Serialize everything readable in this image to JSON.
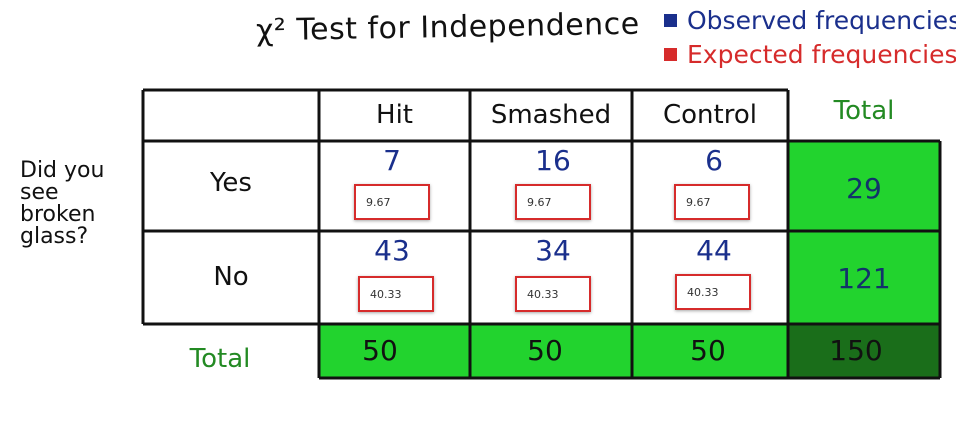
{
  "title": "χ² Test for Independence",
  "legend": [
    {
      "label": "Observed frequencies",
      "color": "#1a2f8c"
    },
    {
      "label": "Expected frequencies",
      "color": "#d62b2b"
    }
  ],
  "question": "Did you see broken glass?",
  "columns": [
    "Hit",
    "Smashed",
    "Control"
  ],
  "total_label": "Total",
  "rows": [
    {
      "label": "Yes",
      "observed": [
        "7",
        "16",
        "6"
      ],
      "expected": [
        "9.67",
        "9.67",
        "9.67"
      ],
      "total": "29"
    },
    {
      "label": "No",
      "observed": [
        "43",
        "34",
        "44"
      ],
      "expected": [
        "40.33",
        "40.33",
        "40.33"
      ],
      "total": "121"
    }
  ],
  "column_totals": [
    "50",
    "50",
    "50"
  ],
  "grand_total": "150",
  "colors": {
    "total_cell": "#22d32e",
    "grand_total_cell": "#1a6e1a",
    "total_text": "#238a23",
    "grid_line": "#111111"
  }
}
